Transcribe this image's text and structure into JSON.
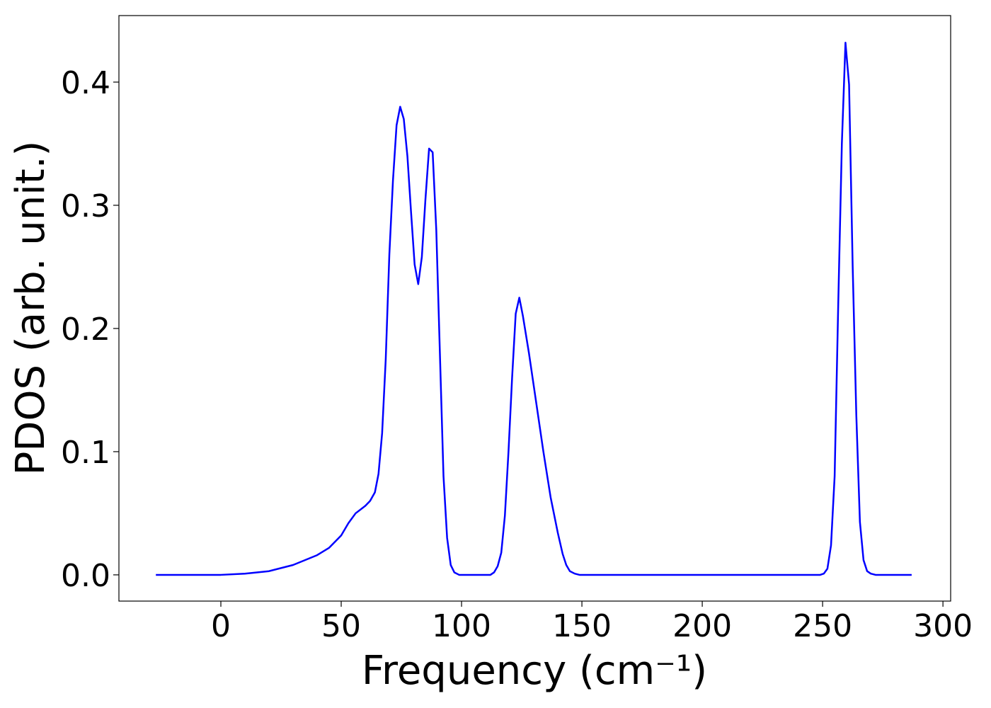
{
  "chart_data": {
    "type": "line",
    "xlabel": "Frequency (cm⁻¹)",
    "ylabel": "PDOS (arb. unit.)",
    "color": "#0000ff",
    "x": [
      -27,
      0,
      10,
      20,
      30,
      40,
      45,
      50,
      53,
      56,
      60,
      62,
      64,
      65.5,
      67,
      68.5,
      70,
      71.5,
      73,
      74.5,
      76,
      77.5,
      79,
      80.5,
      82,
      83.5,
      85,
      86.5,
      88,
      89.5,
      91,
      92.5,
      94,
      95.5,
      97,
      99,
      112,
      113.5,
      115,
      116.5,
      118,
      119.5,
      121,
      122.5,
      124,
      125.5,
      128,
      131,
      134,
      137,
      140,
      142,
      143.5,
      145,
      147,
      149,
      249,
      250.5,
      252,
      253.5,
      255,
      256.5,
      258,
      259.5,
      261,
      262.5,
      264,
      265.5,
      267,
      268.5,
      270,
      272,
      287
    ],
    "values": [
      0,
      0,
      0.001,
      0.003,
      0.008,
      0.016,
      0.022,
      0.032,
      0.042,
      0.05,
      0.056,
      0.06,
      0.067,
      0.082,
      0.115,
      0.175,
      0.26,
      0.32,
      0.365,
      0.38,
      0.37,
      0.34,
      0.295,
      0.252,
      0.236,
      0.258,
      0.305,
      0.346,
      0.343,
      0.28,
      0.18,
      0.08,
      0.03,
      0.008,
      0.002,
      0,
      0,
      0.002,
      0.007,
      0.018,
      0.048,
      0.1,
      0.16,
      0.212,
      0.225,
      0.21,
      0.18,
      0.14,
      0.1,
      0.063,
      0.034,
      0.017,
      0.008,
      0.003,
      0.001,
      0,
      0,
      0.001,
      0.005,
      0.024,
      0.08,
      0.22,
      0.35,
      0.432,
      0.398,
      0.25,
      0.13,
      0.043,
      0.012,
      0.003,
      0.001,
      0,
      0
    ],
    "xlim": [
      -42.35,
      303.2
    ],
    "ylim": [
      -0.0213,
      0.454
    ],
    "xticks": [
      0,
      50,
      100,
      150,
      200,
      250,
      300
    ],
    "yticks": [
      {
        "value": 0,
        "label": "0.0"
      },
      {
        "value": 0.1,
        "label": "0.1"
      },
      {
        "value": 0.2,
        "label": "0.2"
      },
      {
        "value": 0.3,
        "label": "0.3"
      },
      {
        "value": 0.4,
        "label": "0.4"
      }
    ]
  }
}
